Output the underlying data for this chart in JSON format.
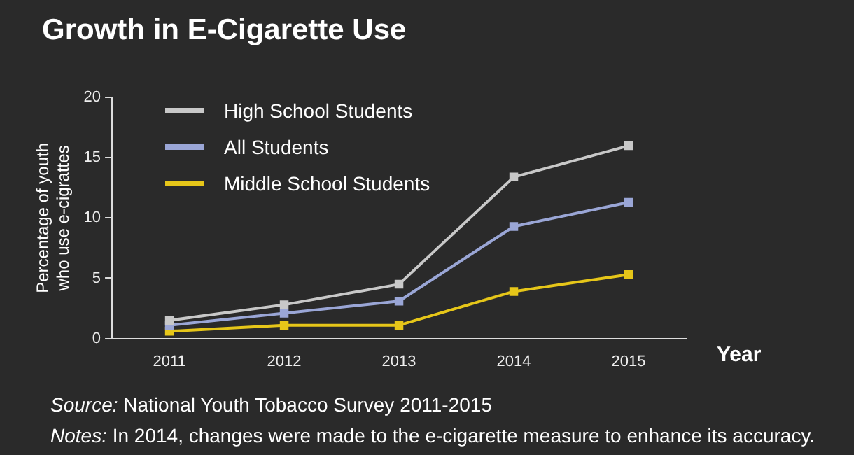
{
  "chart_data": {
    "type": "line",
    "title": "Growth in E-Cigarette Use",
    "xlabel": "Year",
    "ylabel": "Percentage of youth who use e-cigrattes",
    "categories": [
      "2011",
      "2012",
      "2013",
      "2014",
      "2015"
    ],
    "series": [
      {
        "name": "High School Students",
        "color": "#c8c8c8",
        "values": [
          1.5,
          2.8,
          4.5,
          13.4,
          16.0
        ]
      },
      {
        "name": "All Students",
        "color": "#9aa6d6",
        "values": [
          1.1,
          2.1,
          3.1,
          9.3,
          11.3
        ]
      },
      {
        "name": "Middle School Students",
        "color": "#e6c619",
        "values": [
          0.6,
          1.1,
          1.1,
          3.9,
          5.3
        ]
      }
    ],
    "ylim": [
      0,
      20
    ],
    "yticks": [
      0,
      5,
      10,
      15,
      20
    ],
    "grid": false,
    "legend": "top left",
    "marker": "square",
    "line_style": "solid",
    "annotations": [
      "Source: National Youth Tobacco Survey 2011-2015",
      "Notes: In 2014, changes were made to the e-cigarette measure to enhance its accuracy."
    ]
  }
}
